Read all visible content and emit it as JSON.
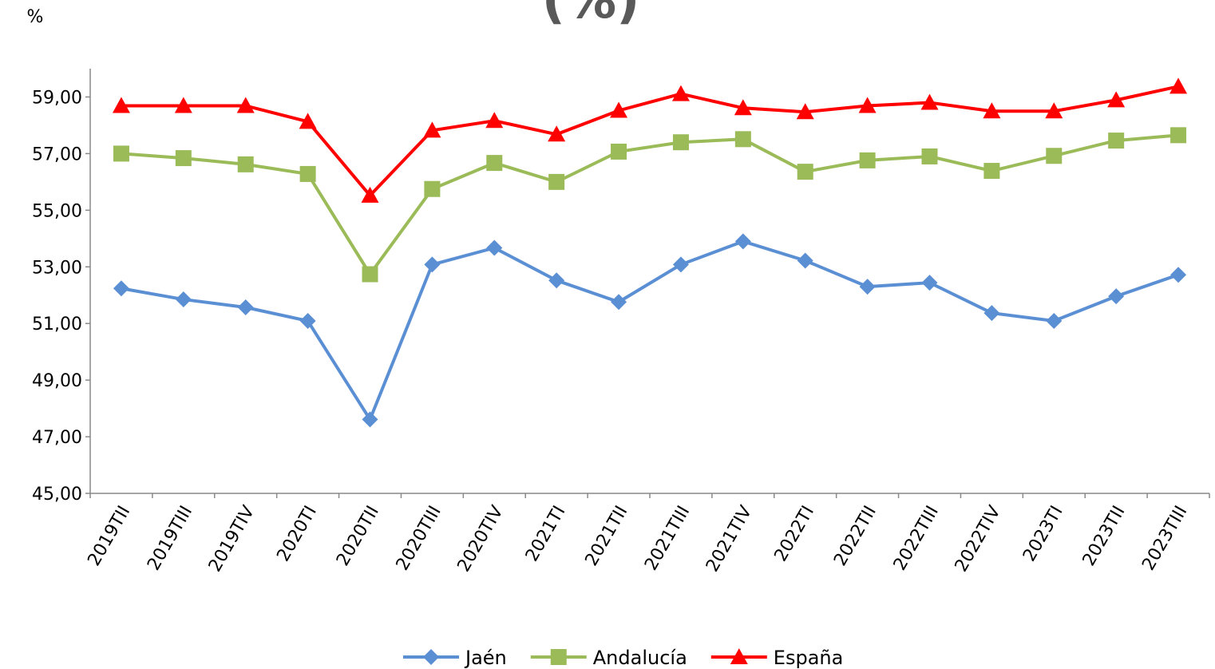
{
  "chart_data": {
    "type": "line",
    "title": "(%)",
    "y_label": "%",
    "categories": [
      "2019TII",
      "2019TIII",
      "2019TIV",
      "2020TI",
      "2020TII",
      "2020TIII",
      "2020TIV",
      "2021TI",
      "2021TII",
      "2021TIII",
      "2021TIV",
      "2022TI",
      "2022TII",
      "2022TIII",
      "2022TIV",
      "2023TI",
      "2023TII",
      "2023TIII"
    ],
    "series": [
      {
        "name": "Jaén",
        "color": "#5b8fd4",
        "marker": "diamond",
        "values": [
          52.24,
          51.85,
          51.57,
          51.09,
          47.61,
          53.08,
          53.67,
          52.52,
          51.76,
          53.08,
          53.9,
          53.22,
          52.3,
          52.44,
          51.37,
          51.09,
          51.96,
          52.72
        ]
      },
      {
        "name": "Andalucía",
        "color": "#9bbb59",
        "marker": "square",
        "values": [
          57.0,
          56.84,
          56.62,
          56.28,
          52.74,
          55.75,
          56.67,
          56.0,
          57.07,
          57.4,
          57.51,
          56.36,
          56.76,
          56.9,
          56.39,
          56.92,
          57.46,
          57.65
        ]
      },
      {
        "name": "España",
        "color": "#ff0000",
        "marker": "triangle",
        "values": [
          58.69,
          58.69,
          58.69,
          58.13,
          55.52,
          57.82,
          58.16,
          57.68,
          58.52,
          59.11,
          58.61,
          58.47,
          58.69,
          58.8,
          58.5,
          58.5,
          58.89,
          59.37
        ]
      }
    ],
    "ylim": [
      45,
      60
    ],
    "yticks": [
      {
        "value": 45,
        "label": "45,00"
      },
      {
        "value": 47,
        "label": "47,00"
      },
      {
        "value": 49,
        "label": "49,00"
      },
      {
        "value": 51,
        "label": "51,00"
      },
      {
        "value": 53,
        "label": "53,00"
      },
      {
        "value": 55,
        "label": "55,00"
      },
      {
        "value": 57,
        "label": "57,00"
      },
      {
        "value": 59,
        "label": "59,00"
      }
    ],
    "legend": "bottom"
  }
}
